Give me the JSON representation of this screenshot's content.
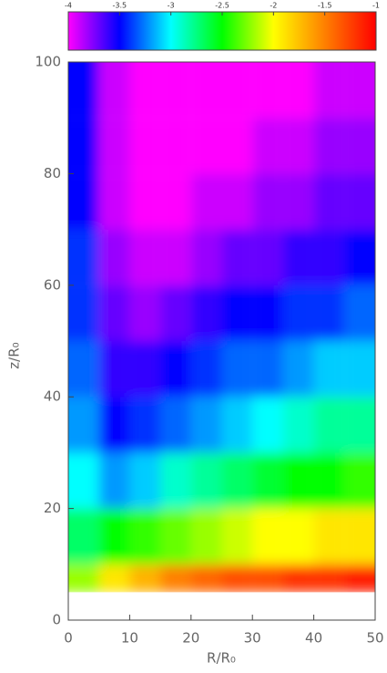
{
  "chart_data": {
    "type": "heatmap",
    "xlabel": "R/R₀",
    "ylabel": "z/R₀",
    "xlim": [
      0,
      50
    ],
    "xticks": [
      0,
      10,
      20,
      30,
      40,
      50
    ],
    "ylim": [
      0,
      100
    ],
    "yticks": [
      0,
      20,
      40,
      60,
      80,
      100
    ],
    "clim": [
      -4,
      -1
    ],
    "cticks": [
      -4,
      -3.5,
      -3,
      -2.5,
      -2,
      -1.5,
      -1
    ],
    "colormap": [
      "#ff00ff",
      "#0000ff",
      "#00ffff",
      "#00ff00",
      "#ffff00",
      "#ff8000",
      "#ff0000"
    ],
    "x_edges": [
      0,
      5,
      10,
      15,
      20,
      25,
      30,
      35,
      40,
      45,
      50
    ],
    "y_edges": [
      5,
      10,
      20,
      30,
      40,
      50,
      60,
      70,
      80,
      90,
      100
    ],
    "z": [
      [
        -2.2,
        -1.9,
        -1.7,
        -1.5,
        -1.4,
        -1.3,
        -1.3,
        -1.2,
        -1.2,
        -1.1
      ],
      [
        -2.7,
        -2.5,
        -2.4,
        -2.3,
        -2.2,
        -2.1,
        -2.0,
        -2.0,
        -1.9,
        -1.9
      ],
      [
        -3.0,
        -3.2,
        -3.1,
        -2.9,
        -2.8,
        -2.7,
        -2.6,
        -2.5,
        -2.5,
        -2.4
      ],
      [
        -3.2,
        -3.5,
        -3.4,
        -3.3,
        -3.2,
        -3.1,
        -3.0,
        -2.9,
        -2.8,
        -2.8
      ],
      [
        -3.3,
        -3.6,
        -3.6,
        -3.5,
        -3.4,
        -3.3,
        -3.3,
        -3.2,
        -3.1,
        -3.1
      ],
      [
        -3.4,
        -3.7,
        -3.8,
        -3.7,
        -3.6,
        -3.5,
        -3.5,
        -3.4,
        -3.4,
        -3.3
      ],
      [
        -3.4,
        -3.8,
        -3.9,
        -3.9,
        -3.8,
        -3.7,
        -3.7,
        -3.6,
        -3.6,
        -3.5
      ],
      [
        -3.5,
        -3.9,
        -4.0,
        -4.0,
        -3.9,
        -3.9,
        -3.8,
        -3.8,
        -3.7,
        -3.7
      ],
      [
        -3.5,
        -3.9,
        -4.0,
        -4.0,
        -4.0,
        -4.0,
        -3.9,
        -3.9,
        -3.8,
        -3.8
      ],
      [
        -3.5,
        -3.9,
        -4.0,
        -4.0,
        -4.0,
        -4.0,
        -4.0,
        -4.0,
        -3.9,
        -3.9
      ]
    ]
  }
}
